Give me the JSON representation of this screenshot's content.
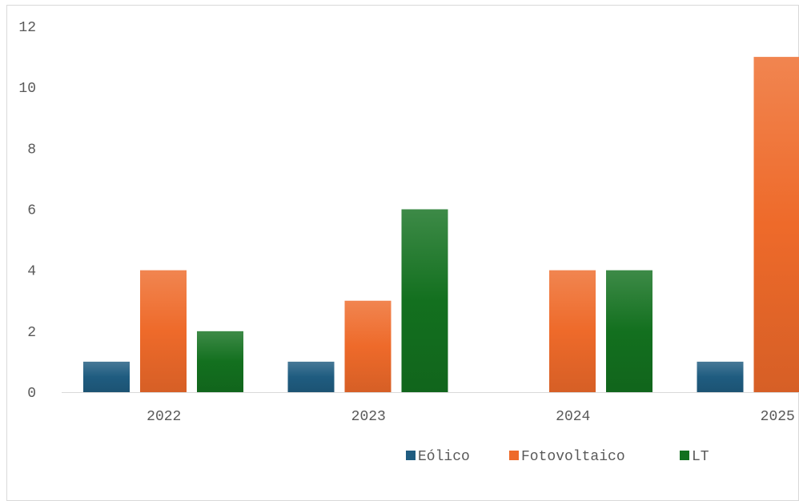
{
  "chart_data": {
    "type": "bar",
    "title": "",
    "xlabel": "",
    "ylabel": "",
    "categories": [
      "2022",
      "2023",
      "2024",
      "2025"
    ],
    "series": [
      {
        "name": "Eólico",
        "values": [
          1,
          1,
          0,
          1
        ],
        "color": "#1f5c80"
      },
      {
        "name": "Fotovoltaico",
        "values": [
          4,
          3,
          4,
          11
        ],
        "color": "#ee6a2a"
      },
      {
        "name": "LT",
        "values": [
          2,
          6,
          4,
          null
        ],
        "color": "#13701f"
      }
    ],
    "ylim": [
      0,
      12
    ],
    "yticks": [
      0,
      2,
      4,
      6,
      8,
      10,
      12
    ],
    "grid": false,
    "legend": "bottom"
  },
  "colors": {
    "axis": "#d9d9d9",
    "text": "#595959"
  }
}
